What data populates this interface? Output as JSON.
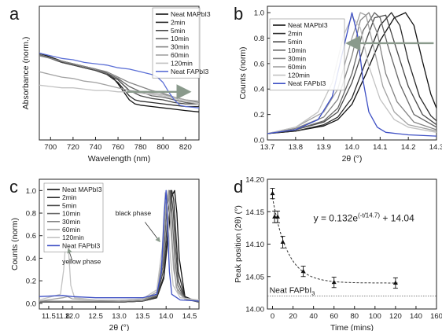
{
  "panels": {
    "a": {
      "letter": "a"
    },
    "b": {
      "letter": "b"
    },
    "c": {
      "letter": "c"
    },
    "d": {
      "letter": "d"
    }
  },
  "chart_data": [
    {
      "id": "a",
      "type": "line",
      "xlabel": "Wavelength (nm)",
      "ylabel": "Absorbance (norm.)",
      "xlim": [
        690,
        832
      ],
      "ylim": [
        0,
        1.0
      ],
      "xticks": [
        700,
        720,
        740,
        760,
        780,
        800,
        820
      ],
      "legend_position": "top-right",
      "annotations": [
        "arrow pointing right from neat FAPbI3 toward neat MAPbI3 region near 815 nm"
      ],
      "series": [
        {
          "name": "Neat MAPbI3",
          "color": "#111111",
          "x": [
            690,
            700,
            710,
            720,
            730,
            740,
            750,
            755,
            760,
            765,
            770,
            775,
            780,
            790,
            800,
            810,
            820,
            832
          ],
          "y": [
            0.65,
            0.62,
            0.59,
            0.57,
            0.55,
            0.53,
            0.5,
            0.47,
            0.42,
            0.36,
            0.3,
            0.27,
            0.26,
            0.25,
            0.24,
            0.23,
            0.22,
            0.21
          ]
        },
        {
          "name": "2min",
          "color": "#2b2b2b",
          "x": [
            690,
            700,
            710,
            720,
            730,
            740,
            750,
            760,
            765,
            770,
            775,
            780,
            790,
            800,
            810,
            820,
            832
          ],
          "y": [
            0.64,
            0.61,
            0.58,
            0.56,
            0.54,
            0.52,
            0.49,
            0.43,
            0.38,
            0.33,
            0.3,
            0.29,
            0.28,
            0.27,
            0.26,
            0.25,
            0.25
          ]
        },
        {
          "name": "5min",
          "color": "#484848",
          "x": [
            690,
            700,
            710,
            720,
            730,
            740,
            750,
            760,
            770,
            780,
            790,
            800,
            810,
            820,
            832
          ],
          "y": [
            0.64,
            0.61,
            0.58,
            0.56,
            0.54,
            0.52,
            0.49,
            0.45,
            0.37,
            0.33,
            0.31,
            0.3,
            0.28,
            0.27,
            0.27
          ]
        },
        {
          "name": "10min",
          "color": "#666666",
          "x": [
            690,
            700,
            710,
            720,
            730,
            740,
            750,
            760,
            770,
            780,
            790,
            800,
            810,
            820,
            832
          ],
          "y": [
            0.64,
            0.61,
            0.59,
            0.57,
            0.55,
            0.53,
            0.5,
            0.46,
            0.4,
            0.36,
            0.33,
            0.32,
            0.3,
            0.28,
            0.27
          ]
        },
        {
          "name": "30min",
          "color": "#838383",
          "x": [
            690,
            700,
            710,
            720,
            730,
            740,
            750,
            760,
            770,
            780,
            790,
            800,
            810,
            820,
            832
          ],
          "y": [
            0.63,
            0.61,
            0.59,
            0.57,
            0.55,
            0.53,
            0.51,
            0.47,
            0.43,
            0.4,
            0.37,
            0.35,
            0.32,
            0.3,
            0.28
          ]
        },
        {
          "name": "60min",
          "color": "#a2a2a2",
          "x": [
            690,
            700,
            710,
            720,
            730,
            740,
            750,
            760,
            770,
            780,
            790,
            800,
            810,
            820,
            832
          ],
          "y": [
            0.51,
            0.49,
            0.47,
            0.46,
            0.44,
            0.43,
            0.41,
            0.39,
            0.37,
            0.36,
            0.35,
            0.34,
            0.32,
            0.3,
            0.29
          ]
        },
        {
          "name": "120min",
          "color": "#c2c2c2",
          "x": [
            690,
            700,
            710,
            720,
            730,
            740,
            750,
            760,
            770,
            780,
            790,
            800,
            810,
            820,
            832
          ],
          "y": [
            0.41,
            0.4,
            0.39,
            0.39,
            0.38,
            0.37,
            0.37,
            0.36,
            0.36,
            0.35,
            0.34,
            0.33,
            0.31,
            0.29,
            0.27
          ]
        },
        {
          "name": "Neat FAPbI3",
          "color": "#5b6fd6",
          "x": [
            690,
            700,
            710,
            720,
            730,
            740,
            750,
            760,
            770,
            780,
            790,
            795,
            800,
            805,
            810,
            815,
            820,
            832
          ],
          "y": [
            0.65,
            0.63,
            0.61,
            0.6,
            0.58,
            0.57,
            0.56,
            0.54,
            0.53,
            0.51,
            0.49,
            0.47,
            0.43,
            0.36,
            0.3,
            0.26,
            0.25,
            0.24
          ]
        }
      ]
    },
    {
      "id": "b",
      "type": "line",
      "xlabel": "2θ (°)",
      "ylabel": "Counts (norm)",
      "xlim": [
        13.7,
        14.3
      ],
      "ylim": [
        0,
        1.05
      ],
      "xticks": [
        13.7,
        13.8,
        13.9,
        14.0,
        14.1,
        14.2,
        14.3
      ],
      "yticks": [
        0.0,
        0.2,
        0.4,
        0.6,
        0.8,
        1.0
      ],
      "legend_position": "top-left",
      "annotations": [
        "arrow pointing left from Neat MAPbI3 peak toward Neat FAPbI3 peak"
      ],
      "series": [
        {
          "name": "Neat MAPbI3",
          "color": "#111111",
          "x": [
            13.7,
            13.8,
            13.9,
            13.95,
            14.0,
            14.05,
            14.1,
            14.15,
            14.19,
            14.22,
            14.25,
            14.28,
            14.3
          ],
          "y": [
            0.05,
            0.07,
            0.11,
            0.16,
            0.28,
            0.52,
            0.78,
            0.96,
            1.0,
            0.9,
            0.62,
            0.36,
            0.25
          ]
        },
        {
          "name": "2min",
          "color": "#2b2b2b",
          "x": [
            13.7,
            13.8,
            13.9,
            13.95,
            14.0,
            14.05,
            14.1,
            14.14,
            14.17,
            14.2,
            14.24,
            14.28,
            14.3
          ],
          "y": [
            0.05,
            0.07,
            0.12,
            0.18,
            0.33,
            0.62,
            0.9,
            1.0,
            0.9,
            0.62,
            0.34,
            0.19,
            0.15
          ]
        },
        {
          "name": "5min",
          "color": "#484848",
          "x": [
            13.7,
            13.8,
            13.9,
            13.95,
            14.0,
            14.05,
            14.08,
            14.12,
            14.16,
            14.2,
            14.25,
            14.3
          ],
          "y": [
            0.05,
            0.08,
            0.14,
            0.22,
            0.45,
            0.78,
            0.96,
            0.98,
            0.7,
            0.42,
            0.2,
            0.12
          ]
        },
        {
          "name": "10min",
          "color": "#666666",
          "x": [
            13.7,
            13.8,
            13.9,
            13.95,
            14.0,
            14.04,
            14.08,
            14.1,
            14.13,
            14.17,
            14.22,
            14.3
          ],
          "y": [
            0.05,
            0.08,
            0.15,
            0.25,
            0.52,
            0.86,
            1.0,
            0.96,
            0.72,
            0.44,
            0.2,
            0.1
          ]
        },
        {
          "name": "30min",
          "color": "#838383",
          "x": [
            13.7,
            13.8,
            13.9,
            13.95,
            14.0,
            14.03,
            14.06,
            14.09,
            14.12,
            14.16,
            14.22,
            14.3
          ],
          "y": [
            0.05,
            0.09,
            0.18,
            0.32,
            0.66,
            0.94,
            1.0,
            0.84,
            0.52,
            0.3,
            0.14,
            0.08
          ]
        },
        {
          "name": "60min",
          "color": "#a2a2a2",
          "x": [
            13.7,
            13.8,
            13.9,
            13.95,
            14.0,
            14.03,
            14.05,
            14.08,
            14.11,
            14.15,
            14.2,
            14.3
          ],
          "y": [
            0.05,
            0.1,
            0.22,
            0.4,
            0.8,
            1.0,
            0.98,
            0.7,
            0.42,
            0.22,
            0.12,
            0.07
          ]
        },
        {
          "name": "120min",
          "color": "#c2c2c2",
          "x": [
            13.7,
            13.8,
            13.88,
            13.93,
            13.97,
            14.0,
            14.03,
            14.06,
            14.1,
            14.15,
            14.2,
            14.3
          ],
          "y": [
            0.05,
            0.1,
            0.22,
            0.45,
            0.82,
            0.97,
            0.88,
            0.58,
            0.32,
            0.16,
            0.1,
            0.06
          ]
        },
        {
          "name": "Neat FAPbI3",
          "color": "#3d4fc4",
          "x": [
            13.7,
            13.8,
            13.88,
            13.93,
            13.97,
            14.0,
            14.02,
            14.04,
            14.06,
            14.09,
            14.12,
            14.2,
            14.3
          ],
          "y": [
            0.05,
            0.08,
            0.16,
            0.34,
            0.72,
            1.0,
            0.82,
            0.46,
            0.22,
            0.1,
            0.06,
            0.04,
            0.03
          ]
        }
      ]
    },
    {
      "id": "c",
      "type": "line",
      "xlabel": "2θ (°)",
      "ylabel": "Counts (norm)",
      "xlim": [
        11.3,
        14.7
      ],
      "ylim": [
        -0.05,
        1.1
      ],
      "xticks": [
        11.5,
        11.8,
        12.0,
        12.5,
        13.0,
        13.5,
        14.0,
        14.5
      ],
      "yticks": [
        0.0,
        0.2,
        0.4,
        0.6,
        0.8,
        1.0
      ],
      "legend_position": "top-left",
      "annotations": [
        "yellow phase",
        "black phase"
      ],
      "series": [
        {
          "name": "Neat MAPbI3",
          "color": "#111111",
          "x": [
            11.3,
            11.9,
            12.5,
            13.0,
            13.5,
            13.8,
            13.95,
            14.05,
            14.12,
            14.18,
            14.23,
            14.28,
            14.4,
            14.7
          ],
          "y": [
            0.01,
            0.01,
            0.01,
            0.01,
            0.02,
            0.05,
            0.22,
            0.62,
            0.95,
            1.0,
            0.8,
            0.4,
            0.06,
            0.01
          ]
        },
        {
          "name": "2min",
          "color": "#2b2b2b",
          "x": [
            11.3,
            12.0,
            13.0,
            13.5,
            13.8,
            13.95,
            14.05,
            14.12,
            14.16,
            14.2,
            14.26,
            14.4,
            14.7
          ],
          "y": [
            0.01,
            0.01,
            0.01,
            0.02,
            0.05,
            0.24,
            0.7,
            1.0,
            0.92,
            0.68,
            0.28,
            0.05,
            0.01
          ]
        },
        {
          "name": "5min",
          "color": "#484848",
          "x": [
            11.3,
            12.0,
            13.0,
            13.5,
            13.8,
            13.95,
            14.04,
            14.1,
            14.15,
            14.2,
            14.26,
            14.4,
            14.7
          ],
          "y": [
            0.01,
            0.01,
            0.01,
            0.02,
            0.06,
            0.3,
            0.8,
            1.0,
            0.82,
            0.5,
            0.2,
            0.04,
            0.01
          ]
        },
        {
          "name": "10min",
          "color": "#666666",
          "x": [
            11.3,
            12.0,
            13.0,
            13.5,
            13.8,
            13.93,
            14.02,
            14.08,
            14.13,
            14.18,
            14.25,
            14.4,
            14.7
          ],
          "y": [
            0.01,
            0.01,
            0.01,
            0.02,
            0.07,
            0.32,
            0.86,
            1.0,
            0.76,
            0.42,
            0.16,
            0.04,
            0.01
          ]
        },
        {
          "name": "30min",
          "color": "#838383",
          "x": [
            11.3,
            12.0,
            13.0,
            13.5,
            13.8,
            13.92,
            14.0,
            14.06,
            14.1,
            14.15,
            14.22,
            14.4,
            14.7
          ],
          "y": [
            0.02,
            0.02,
            0.02,
            0.03,
            0.08,
            0.36,
            0.88,
            1.0,
            0.74,
            0.4,
            0.14,
            0.04,
            0.02
          ]
        },
        {
          "name": "60min",
          "color": "#a2a2a2",
          "x": [
            11.3,
            11.8,
            11.9,
            12.0,
            13.0,
            13.5,
            13.8,
            13.92,
            14.0,
            14.05,
            14.1,
            14.16,
            14.25,
            14.4,
            14.7
          ],
          "y": [
            0.02,
            0.05,
            0.06,
            0.04,
            0.02,
            0.03,
            0.1,
            0.4,
            0.9,
            1.0,
            0.66,
            0.3,
            0.1,
            0.04,
            0.02
          ]
        },
        {
          "name": "120min",
          "color": "#c2c2c2",
          "x": [
            11.3,
            11.75,
            11.82,
            11.87,
            11.9,
            11.93,
            11.97,
            12.05,
            12.5,
            13.0,
            13.5,
            13.8,
            13.92,
            13.98,
            14.03,
            14.08,
            14.15,
            14.3,
            14.7
          ],
          "y": [
            0.03,
            0.08,
            0.3,
            0.58,
            0.62,
            0.42,
            0.16,
            0.05,
            0.03,
            0.03,
            0.04,
            0.12,
            0.5,
            0.98,
            0.86,
            0.46,
            0.16,
            0.05,
            0.03
          ]
        },
        {
          "name": "Neat FAPbI3",
          "color": "#3d4fc4",
          "x": [
            11.3,
            11.8,
            12.0,
            12.5,
            13.0,
            13.5,
            13.8,
            13.9,
            13.96,
            14.0,
            14.03,
            14.07,
            14.12,
            14.3,
            14.7
          ],
          "y": [
            0.06,
            0.07,
            0.06,
            0.05,
            0.05,
            0.05,
            0.08,
            0.28,
            0.8,
            1.0,
            0.7,
            0.28,
            0.08,
            0.03,
            0.02
          ]
        }
      ]
    },
    {
      "id": "d",
      "type": "scatter",
      "xlabel": "Time (mins)",
      "ylabel": "Peak position (2θ) (°)",
      "xlim": [
        -5,
        160
      ],
      "ylim": [
        14.0,
        14.2
      ],
      "xticks": [
        0,
        20,
        40,
        60,
        80,
        100,
        120,
        140,
        160
      ],
      "yticks": [
        14.0,
        14.05,
        14.1,
        14.15,
        14.2
      ],
      "ytick_labels": [
        "14.00",
        "14.05",
        "14.10",
        "14.15",
        "14.20"
      ],
      "equation": "y = 0.132e^(-t/14.7) + 14.04",
      "fit": {
        "a": 0.132,
        "tau": 14.7,
        "c": 14.04
      },
      "reference_line": {
        "label": "Neat FAPbI3",
        "y": 14.02
      },
      "series": [
        {
          "name": "Peak position",
          "color": "#111111",
          "x": [
            0,
            2,
            5,
            10,
            30,
            60,
            120
          ],
          "y": [
            14.178,
            14.142,
            14.142,
            14.103,
            14.058,
            14.041,
            14.04
          ],
          "err": [
            0.008,
            0.009,
            0.009,
            0.009,
            0.008,
            0.008,
            0.008
          ]
        }
      ]
    }
  ]
}
